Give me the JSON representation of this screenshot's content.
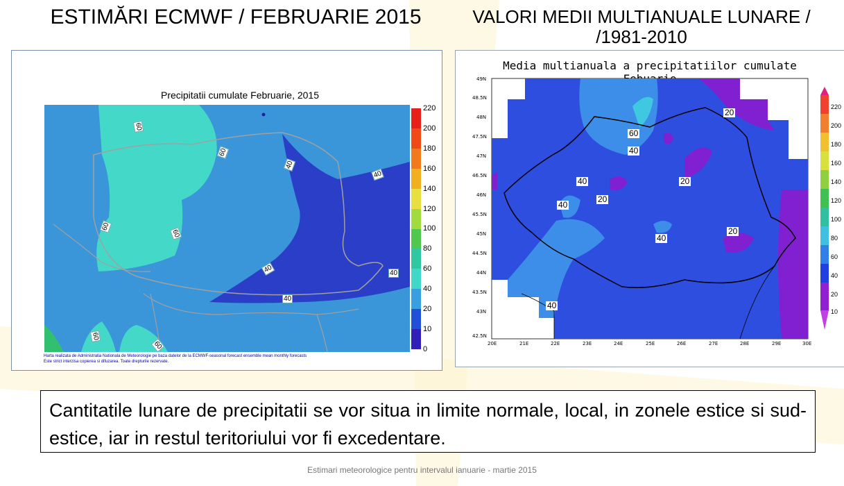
{
  "slide": {
    "title_left": "ESTIMĂRI ECMWF / FEBRUARIE 2015",
    "title_right_line1": "VALORI MEDII MULTIANUALE LUNARE /",
    "title_right_line2": "/1981-2010",
    "summary": "Cantitatile lunare de precipitatii se vor situa in limite normale, local, in zonele estice si sud-estice, iar in restul teritoriului vor fi excedentare.",
    "footer": "Estimari meteorologice pentru intervalul ianuarie - martie 2015"
  },
  "left_map": {
    "title": "Precipitatii cumulate Februarie, 2015",
    "credit_line1": "Harta realizata de Administratia Nationala de Meteorologie pe baza datelor de la ECMWF-seasonal forecast ensemble mean monthly forecasts",
    "credit_line2": "Este strict interzisa copierea si difuzarea. Toate drepturile rezervate.",
    "colorbar": [
      "220",
      "200",
      "180",
      "160",
      "140",
      "120",
      "100",
      "80",
      "60",
      "40",
      "20",
      "10",
      "0"
    ],
    "colorbar_colors": [
      "#e8201a",
      "#f04a16",
      "#f07a1c",
      "#f0b020",
      "#e8e040",
      "#a0dc40",
      "#50c850",
      "#30c8a0",
      "#40d8c8",
      "#38a0e0",
      "#2050d8",
      "#3020b8",
      "#8000c0"
    ],
    "contour_labels": [
      "60",
      "60",
      "40",
      "40",
      "60",
      "60",
      "40",
      "40",
      "40",
      "60",
      "60"
    ]
  },
  "right_map": {
    "title": "Media multianuala a precipitatiilor cumulate Febuarie",
    "colorbar": [
      "220",
      "200",
      "180",
      "160",
      "140",
      "120",
      "100",
      "80",
      "60",
      "40",
      "20",
      "10"
    ],
    "colorbar_colors": [
      "#e02080",
      "#f04030",
      "#f08030",
      "#f0c030",
      "#d8e040",
      "#90d040",
      "#40c050",
      "#30c0a0",
      "#40c0e0",
      "#3080e8",
      "#2040e0",
      "#9020d0"
    ],
    "lat_labels": [
      "49N",
      "48.5N",
      "48N",
      "47.5N",
      "47N",
      "46.5N",
      "46N",
      "45.5N",
      "45N",
      "44.5N",
      "44N",
      "43.5N",
      "43N",
      "42.5N"
    ],
    "lon_labels": [
      "20E",
      "21E",
      "22E",
      "23E",
      "24E",
      "25E",
      "26E",
      "27E",
      "28E",
      "29E",
      "30E"
    ],
    "contour_labels": [
      "60",
      "40",
      "40",
      "20",
      "20",
      "40",
      "20",
      "20",
      "40",
      "40"
    ]
  }
}
